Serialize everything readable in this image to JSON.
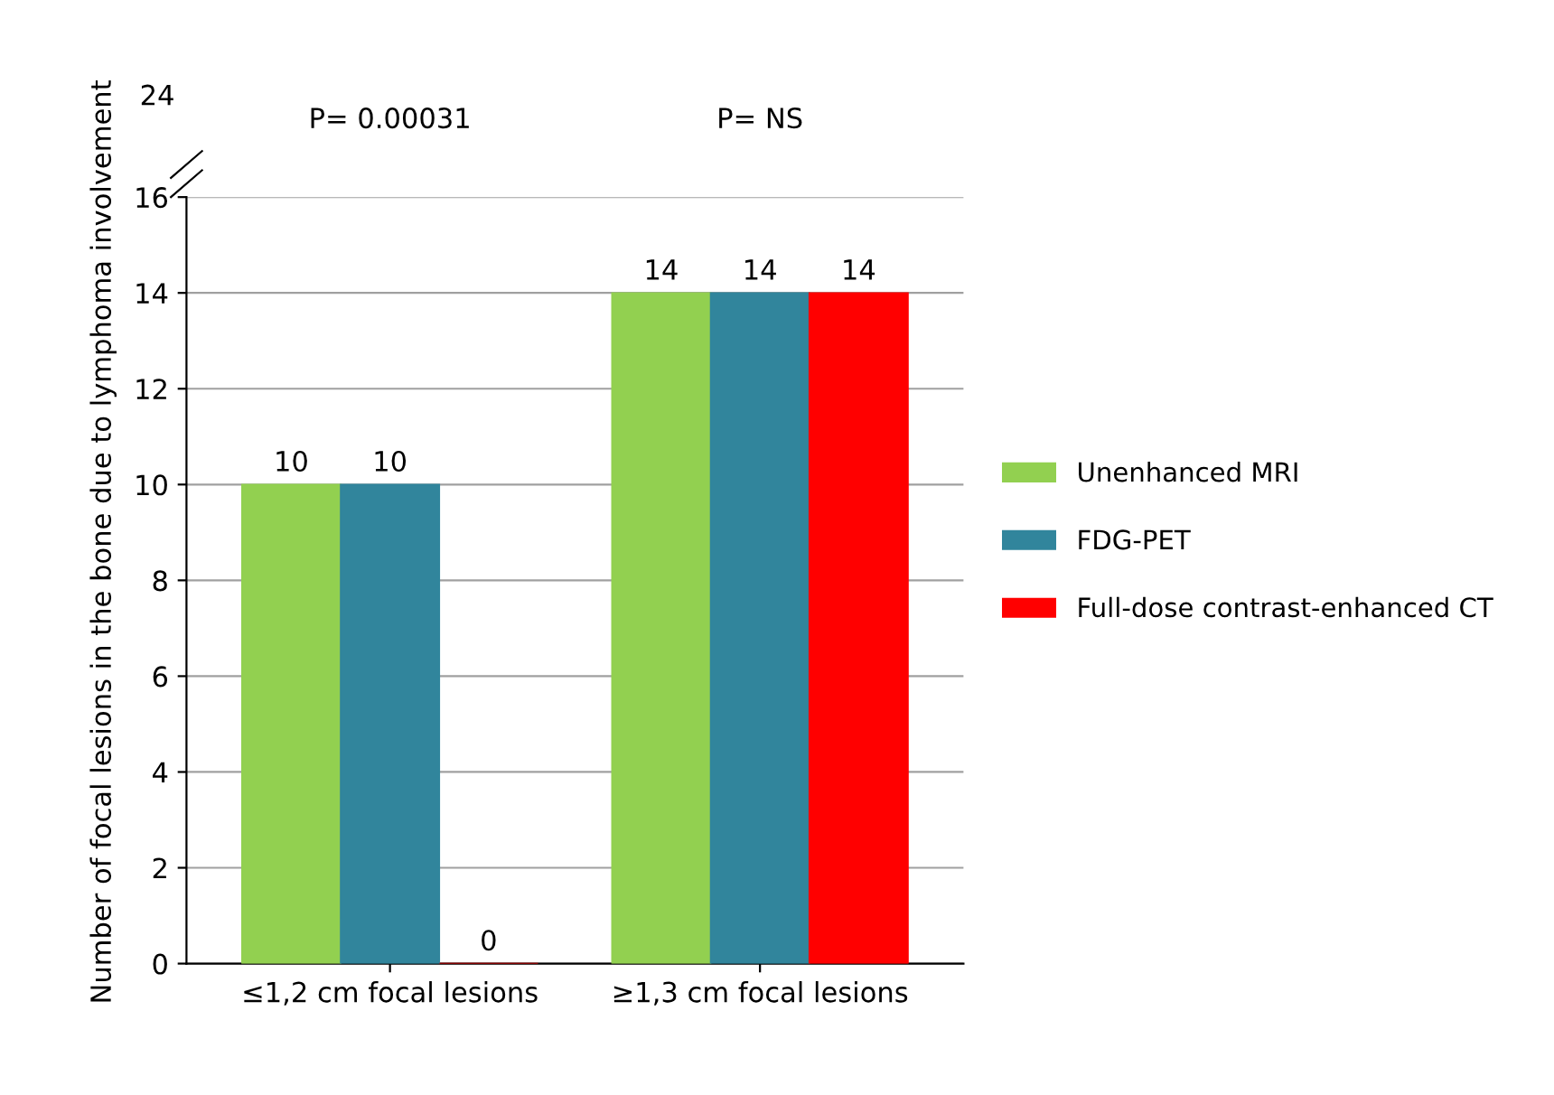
{
  "chart_data": {
    "type": "bar",
    "ylabel": "Number of focal lesions in the bone due to lymphoma involvement",
    "categories": [
      "≤1,2 cm focal lesions",
      "≥1,3 cm focal lesions"
    ],
    "series": [
      {
        "name": "Unenhanced MRI",
        "color": "#92d050",
        "values": [
          10,
          14
        ]
      },
      {
        "name": "FDG-PET",
        "color": "#31859c",
        "values": [
          10,
          14
        ]
      },
      {
        "name": "Full-dose contrast-enhanced CT",
        "color": "#ff0000",
        "values": [
          0,
          14
        ]
      }
    ],
    "ylim": [
      0,
      16
    ],
    "yticks": [
      0,
      2,
      4,
      6,
      8,
      10,
      12,
      14,
      16
    ],
    "annotations": [
      "24",
      "P= 0.00031",
      "P= NS"
    ],
    "data_labels": true,
    "grid": "y",
    "legend": "right"
  }
}
